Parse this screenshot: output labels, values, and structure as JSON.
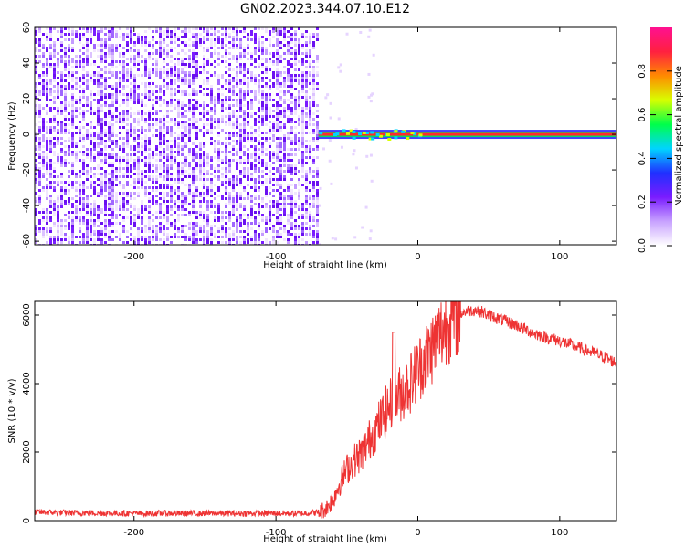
{
  "title": "GN02.2023.344.07.10.E12",
  "chart_data": [
    {
      "type": "heatmap",
      "xlabel": "Height of straight line (km)",
      "ylabel": "Frequency (Hz)",
      "xlim": [
        -270,
        140
      ],
      "ylim": [
        -62,
        60
      ],
      "x_ticks": [
        -200,
        -100,
        0,
        100
      ],
      "y_ticks": [
        -60,
        -40,
        -20,
        0,
        20,
        40,
        60
      ],
      "colorbar": {
        "label": "Normalized spectral amplitude",
        "range": [
          0,
          1
        ],
        "ticks": [
          0.0,
          0.2,
          0.4,
          0.6,
          0.8
        ],
        "colormap": [
          "#ffffff",
          "#c8a2ff",
          "#7a1cff",
          "#2030ff",
          "#00d4ff",
          "#00ff4a",
          "#d8ff00",
          "#ff8a00",
          "#ff2040",
          "#ff1090"
        ]
      },
      "features": {
        "noise_region_x": [
          -270,
          -70
        ],
        "signal_line_x": [
          -70,
          140
        ],
        "signal_line_frequency": 0,
        "noise_color": "#7a1cff",
        "line_color": "#ff2a2a"
      }
    },
    {
      "type": "line",
      "xlabel": "Height of straight line (km)",
      "ylabel": "SNR (10 * v/v)",
      "xlim": [
        -270,
        140
      ],
      "ylim": [
        0,
        6400
      ],
      "x_ticks": [
        -200,
        -100,
        0,
        100
      ],
      "y_ticks": [
        0,
        2000,
        4000,
        6000
      ],
      "color": "#ee3333",
      "series": [
        {
          "x": [
            -270,
            -250,
            -200,
            -150,
            -100,
            -80,
            -70,
            -65,
            -60,
            -55,
            -50,
            -45,
            -40,
            -35,
            -30,
            -25,
            -20,
            -15,
            -10,
            -5,
            0,
            5,
            10,
            15,
            20,
            25,
            30,
            35,
            40,
            45,
            50,
            60,
            70,
            80,
            90,
            100,
            110,
            120,
            130,
            140
          ],
          "y": [
            250,
            230,
            210,
            210,
            210,
            210,
            240,
            350,
            600,
            1100,
            1500,
            1750,
            1950,
            2300,
            2650,
            3000,
            3350,
            3600,
            3800,
            4050,
            4400,
            4750,
            5050,
            5400,
            5700,
            5900,
            6050,
            6120,
            6150,
            6100,
            6000,
            5850,
            5700,
            5500,
            5350,
            5250,
            5100,
            4950,
            4800,
            4600
          ]
        }
      ]
    }
  ]
}
